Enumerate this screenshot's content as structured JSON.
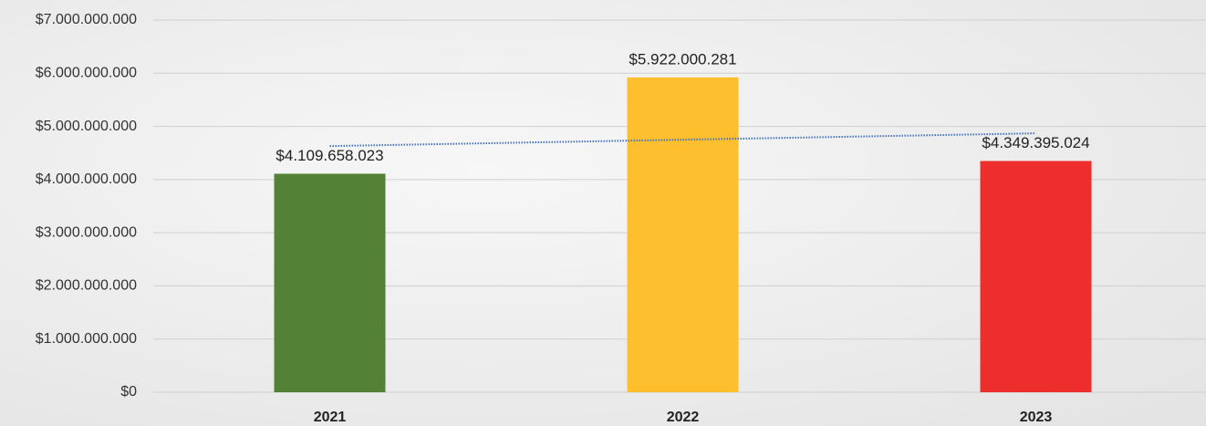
{
  "chart_data": {
    "type": "bar",
    "categories": [
      "2021",
      "2022",
      "2023"
    ],
    "values": [
      4109658023,
      5922000281,
      4349395024
    ],
    "value_labels": [
      "$4.109.658.023",
      "$5.922.000.281",
      "$4.349.395.024"
    ],
    "colors": [
      "#538135",
      "#fdbf2d",
      "#ee2d2d"
    ],
    "ylim": [
      0,
      7000000000
    ],
    "yticks": [
      {
        "value": 0,
        "label": "$0"
      },
      {
        "value": 1000000000,
        "label": "$1.000.000.000"
      },
      {
        "value": 2000000000,
        "label": "$2.000.000.000"
      },
      {
        "value": 3000000000,
        "label": "$3.000.000.000"
      },
      {
        "value": 4000000000,
        "label": "$4.000.000.000"
      },
      {
        "value": 5000000000,
        "label": "$5.000.000.000"
      },
      {
        "value": 6000000000,
        "label": "$6.000.000.000"
      },
      {
        "value": 7000000000,
        "label": "$7.000.000.000"
      }
    ],
    "grid": true,
    "trendline": {
      "color": "#4472c4",
      "values": [
        4630000000,
        4870000000
      ]
    }
  }
}
